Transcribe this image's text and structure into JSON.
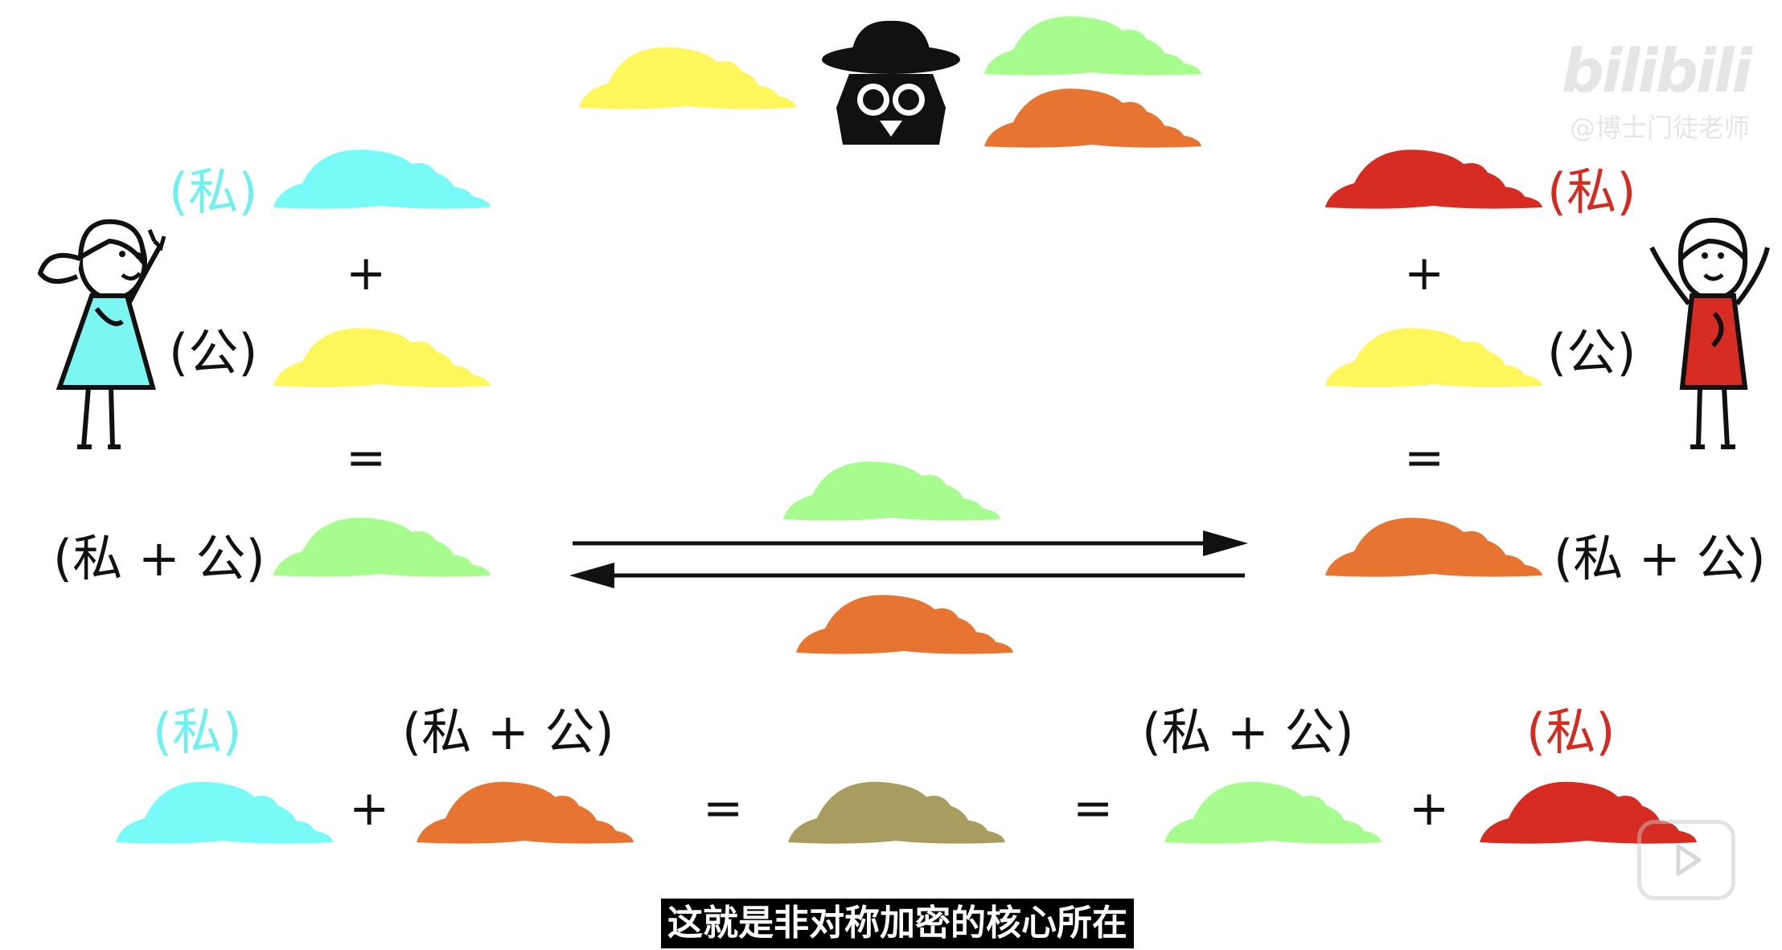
{
  "scene": {
    "subtitle": "这就是非对称加密的核心所在",
    "watermark": {
      "logo": "bilibili",
      "author": "@博士门徒老师"
    }
  },
  "colors": {
    "cyan": "#78fbf8",
    "yellow": "#fdf75c",
    "green": "#a6fd8d",
    "orange": "#e77531",
    "red": "#d72c22",
    "olive": "#a89c5e",
    "cyan_text": "#6ff2ef",
    "red_text": "#d42a20"
  },
  "left_person": {
    "private_label": "(私)",
    "plus": "+",
    "public_label": "(公)",
    "equals": "=",
    "mix_label": "(私 + 公)"
  },
  "right_person": {
    "private_label": "(私)",
    "plus": "+",
    "public_label": "(公)",
    "equals": "=",
    "mix_label": "(私 + 公)"
  },
  "bottom": {
    "left_private_label": "(私)",
    "left_mix_label": "(私 + 公)",
    "right_mix_label": "(私 + 公)",
    "right_private_label": "(私)",
    "plus_1": "+",
    "equals_1": "=",
    "equals_2": "=",
    "plus_2": "+"
  },
  "icons": {
    "spy": "spy-icon",
    "left_person": "girl-icon",
    "right_person": "boy-icon",
    "play": "play-icon"
  }
}
